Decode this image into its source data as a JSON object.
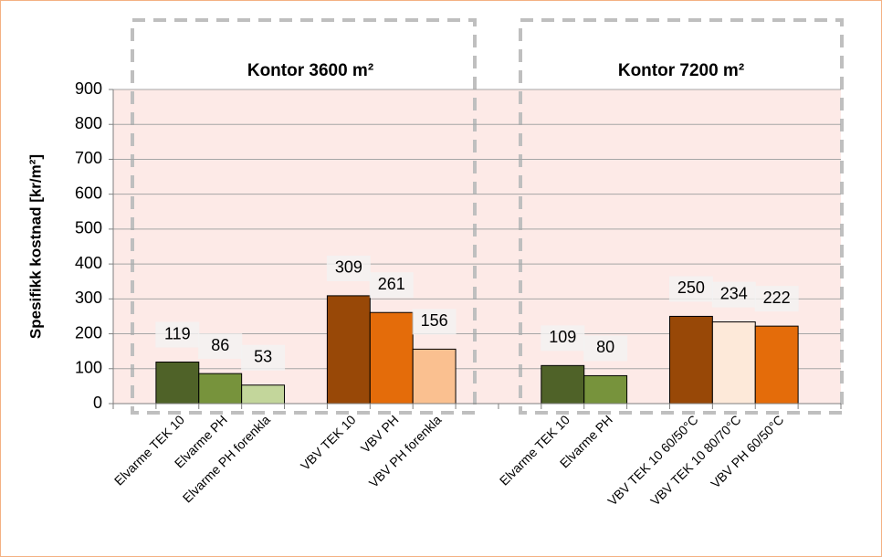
{
  "chart_data": {
    "type": "bar",
    "y_label": "Spesifikk kostnad [kr/m²]",
    "annotations": [
      "Kontor 3600 m²",
      "Kontor 7200 m²"
    ],
    "categories": [
      null,
      "Elvarme TEK 10",
      "Elvarme PH",
      "Elvarme PH forenkla",
      null,
      "VBV TEK 10",
      "VBV PH",
      "VBV PH forenkla",
      null,
      null,
      "Elvarme TEK 10",
      "Elvarme PH",
      null,
      "VBV TEK 10 60/50°C",
      "VBV TEK 10 80/70°C",
      "VBV PH 60/50°C",
      null
    ],
    "values": [
      null,
      119,
      86,
      53,
      null,
      309,
      261,
      156,
      null,
      null,
      109,
      80,
      null,
      250,
      234,
      222,
      null
    ],
    "colors": [
      null,
      "#4f6228",
      "#77933c",
      "#c3d69b",
      null,
      "#984807",
      "#e46c0a",
      "#fac090",
      null,
      null,
      "#4f6228",
      "#77933c",
      null,
      "#984807",
      "#fde9d9",
      "#e46c0a",
      null
    ],
    "ylim": [
      0,
      900
    ],
    "yticks": [
      0,
      100,
      200,
      300,
      400,
      500,
      600,
      700,
      800,
      900
    ],
    "grid": true
  }
}
